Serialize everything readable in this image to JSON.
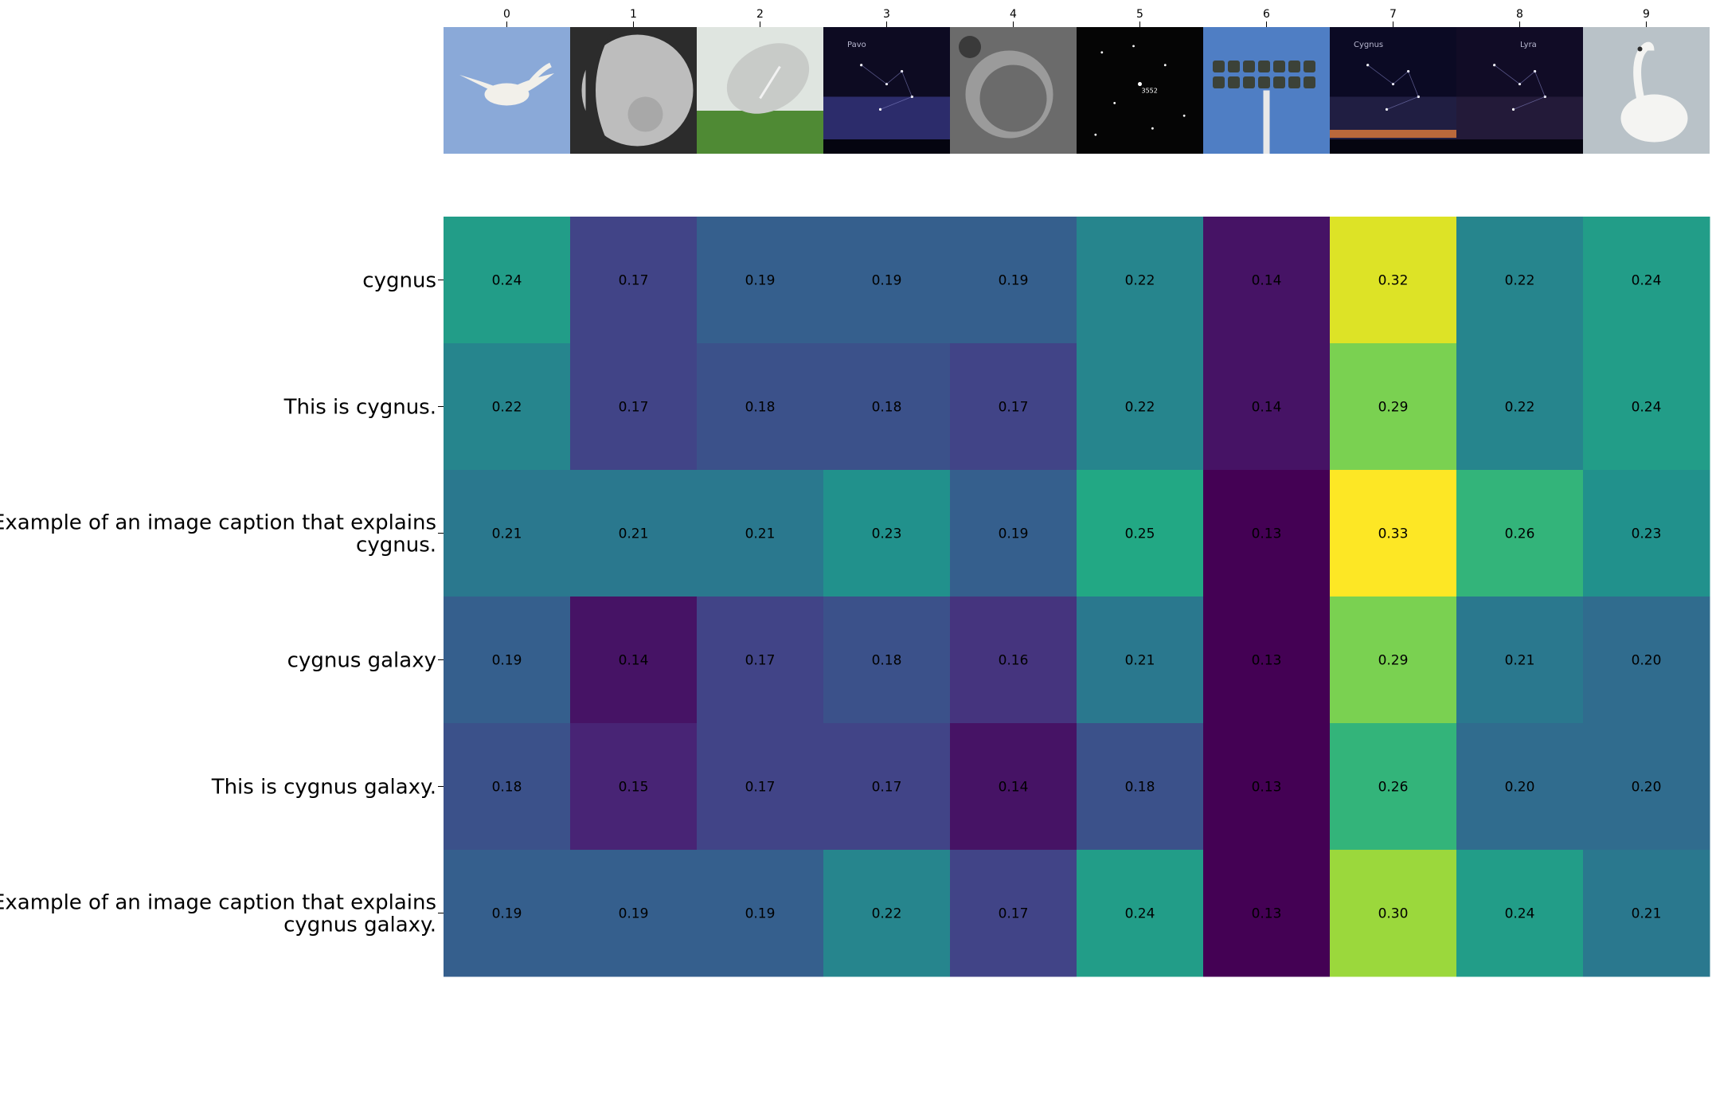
{
  "chart_data": {
    "type": "heatmap",
    "title": "",
    "xlabel": "",
    "ylabel": "",
    "colormap": "viridis",
    "value_range": [
      0.13,
      0.33
    ],
    "columns": [
      "0",
      "1",
      "2",
      "3",
      "4",
      "5",
      "6",
      "7",
      "8",
      "9"
    ],
    "column_images": [
      {
        "index": "0",
        "subject": "white swan flying against blue sky",
        "colors": [
          "#8aa9d8",
          "#f2f0ea",
          "#c9a86a"
        ]
      },
      {
        "index": "1",
        "subject": "cratered grey moon, partially lit",
        "colors": [
          "#2c2c2c",
          "#bdbdbd",
          "#e6e6e6"
        ]
      },
      {
        "index": "2",
        "subject": "radio telescope dish above trees",
        "colors": [
          "#dfe5e0",
          "#4f8a34",
          "#c8cbc8"
        ]
      },
      {
        "index": "3",
        "subject": "night sky with Pavo constellation lines",
        "colors": [
          "#0d0b22",
          "#3a3a8a",
          "#16142a"
        ]
      },
      {
        "index": "4",
        "subject": "grey lunar surface with large crater",
        "colors": [
          "#6b6b6b",
          "#9b9b9b",
          "#3a3a3a"
        ]
      },
      {
        "index": "5",
        "subject": "black star field with a labelled star",
        "colors": [
          "#050505",
          "#ffffff",
          "#222222"
        ]
      },
      {
        "index": "6",
        "subject": "stadium floodlights on a pole against blue sky",
        "colors": [
          "#4f7ec4",
          "#3c4238",
          "#e8e8e8"
        ]
      },
      {
        "index": "7",
        "subject": "night sky over horizon with Cygnus constellation",
        "colors": [
          "#0b0a24",
          "#2a2650",
          "#e07a3a"
        ]
      },
      {
        "index": "8",
        "subject": "starry night sky with Lyra label and tree silhouettes",
        "colors": [
          "#110c26",
          "#2b2142",
          "#000000"
        ]
      },
      {
        "index": "9",
        "subject": "white swan on water",
        "colors": [
          "#b9c2c8",
          "#f4f4f2",
          "#2b2b2b"
        ]
      }
    ],
    "image_labels": [
      "Pavo",
      "3552",
      "Cygnus",
      "Lyra"
    ],
    "rows": [
      "cygnus",
      "This is cygnus.",
      "Example of an image caption that explains cygnus.",
      "cygnus galaxy",
      "This is cygnus galaxy.",
      "Example of an image caption that explains cygnus galaxy."
    ],
    "row_label_lines": [
      [
        "cygnus"
      ],
      [
        "This is cygnus."
      ],
      [
        "Example of an image caption that explains",
        "cygnus."
      ],
      [
        "cygnus galaxy"
      ],
      [
        "This is cygnus galaxy."
      ],
      [
        "Example of an image caption that explains",
        "cygnus galaxy."
      ]
    ],
    "values": [
      [
        0.24,
        0.17,
        0.19,
        0.19,
        0.19,
        0.22,
        0.14,
        0.32,
        0.22,
        0.24
      ],
      [
        0.22,
        0.17,
        0.18,
        0.18,
        0.17,
        0.22,
        0.14,
        0.29,
        0.22,
        0.24
      ],
      [
        0.21,
        0.21,
        0.21,
        0.23,
        0.19,
        0.25,
        0.13,
        0.33,
        0.26,
        0.23
      ],
      [
        0.19,
        0.14,
        0.17,
        0.18,
        0.16,
        0.21,
        0.13,
        0.29,
        0.21,
        0.2
      ],
      [
        0.18,
        0.15,
        0.17,
        0.17,
        0.14,
        0.18,
        0.13,
        0.26,
        0.2,
        0.2
      ],
      [
        0.19,
        0.19,
        0.19,
        0.22,
        0.17,
        0.24,
        0.13,
        0.3,
        0.24,
        0.21
      ]
    ],
    "value_labels": [
      [
        "0.24",
        "0.17",
        "0.19",
        "0.19",
        "0.19",
        "0.22",
        "0.14",
        "0.32",
        "0.22",
        "0.24"
      ],
      [
        "0.22",
        "0.17",
        "0.18",
        "0.18",
        "0.17",
        "0.22",
        "0.14",
        "0.29",
        "0.22",
        "0.24"
      ],
      [
        "0.21",
        "0.21",
        "0.21",
        "0.23",
        "0.19",
        "0.25",
        "0.13",
        "0.33",
        "0.26",
        "0.23"
      ],
      [
        "0.19",
        "0.14",
        "0.17",
        "0.18",
        "0.16",
        "0.21",
        "0.13",
        "0.29",
        "0.21",
        "0.20"
      ],
      [
        "0.18",
        "0.15",
        "0.17",
        "0.17",
        "0.14",
        "0.18",
        "0.13",
        "0.26",
        "0.20",
        "0.20"
      ],
      [
        "0.19",
        "0.19",
        "0.19",
        "0.22",
        "0.17",
        "0.24",
        "0.13",
        "0.30",
        "0.24",
        "0.21"
      ]
    ],
    "grid": false,
    "legend": "none"
  }
}
